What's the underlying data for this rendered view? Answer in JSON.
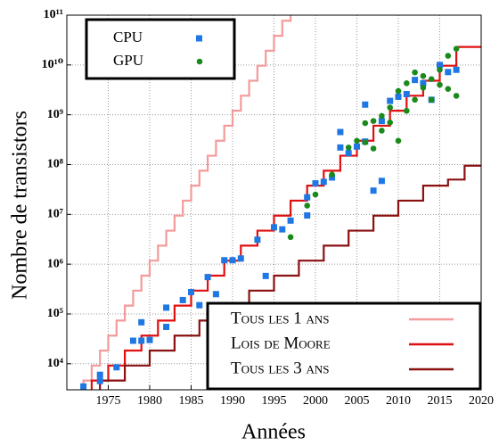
{
  "chart_data": {
    "type": "scatter",
    "xlabel": "Années",
    "ylabel": "Nombre de transistors",
    "xlim": [
      1970,
      2020
    ],
    "ylim": [
      3000,
      100000000000
    ],
    "log_y": true,
    "grid": true,
    "xticks": [
      1975,
      1980,
      1985,
      1990,
      1995,
      2000,
      2005,
      2010,
      2015,
      2020
    ],
    "yticks": [
      {
        "value": 10000,
        "label": "10⁴"
      },
      {
        "value": 100000,
        "label": "10⁵"
      },
      {
        "value": 1000000,
        "label": "10⁶"
      },
      {
        "value": 10000000,
        "label": "10⁷"
      },
      {
        "value": 100000000,
        "label": "10⁸"
      },
      {
        "value": 1000000000,
        "label": "10⁹"
      },
      {
        "value": 10000000000,
        "label": "10¹⁰"
      },
      {
        "value": 100000000000,
        "label": "10¹¹"
      }
    ],
    "series": [
      {
        "name": "CPU",
        "type": "scatter",
        "marker": "square",
        "color": "#1f77e4",
        "legend": "top-left",
        "x": [
          1971,
          1972,
          1974,
          1974,
          1976,
          1978,
          1979,
          1979,
          1980,
          1982,
          1982,
          1984,
          1985,
          1986,
          1987,
          1988,
          1989,
          1990,
          1991,
          1993,
          1994,
          1995,
          1996,
          1997,
          1999,
          1999,
          1999,
          2000,
          2001,
          2002,
          2003,
          2003,
          2004,
          2005,
          2006,
          2006,
          2007,
          2008,
          2008,
          2009,
          2010,
          2011,
          2012,
          2013,
          2014,
          2015,
          2016,
          2017
        ],
        "values": [
          2300,
          3500,
          4500,
          6000,
          8500,
          29000,
          29000,
          68000,
          30000,
          55000,
          134000,
          190000,
          275000,
          150000,
          550000,
          250000,
          1200000,
          1200000,
          1300000,
          3100000,
          580000,
          5500000,
          5000000,
          7500000,
          9500000,
          22000000,
          110000,
          42000000,
          45000000,
          55000000,
          220000000,
          450000000,
          170000000,
          230000000,
          290000000,
          1600000000,
          30000000,
          47000000,
          750000000,
          1900000000,
          2300000000,
          2600000000,
          5000000000,
          4300000000,
          2000000000,
          10000000000,
          7200000000,
          8000000000
        ]
      },
      {
        "name": "GPU",
        "type": "scatter",
        "marker": "circle",
        "color": "#1a8a1a",
        "legend": "top-left",
        "x": [
          1997,
          1999,
          2000,
          2002,
          2004,
          2005,
          2006,
          2006,
          2007,
          2007,
          2008,
          2008,
          2009,
          2009,
          2010,
          2010,
          2011,
          2011,
          2012,
          2012,
          2013,
          2013,
          2014,
          2014,
          2015,
          2015,
          2016,
          2016,
          2017,
          2017
        ],
        "values": [
          3500000,
          15000000,
          25000000,
          63000000,
          220000000,
          300000000,
          280000000,
          680000000,
          210000000,
          750000000,
          950000000,
          480000000,
          700000000,
          1400000000,
          300000000,
          3000000000,
          1200000000,
          4300000000,
          7100000000,
          2000000000,
          3500000000,
          6000000000,
          5200000000,
          2000000000,
          8000000000,
          4000000000,
          15300000000,
          3300000000,
          21100000000,
          2400000000
        ]
      },
      {
        "name": "Tous les 1 ans",
        "type": "line",
        "step": true,
        "color": "#f49a9a",
        "legend": "bottom-right",
        "x": [
          1971,
          1972,
          1973,
          1974,
          1975,
          1976,
          1977,
          1978,
          1979,
          1980,
          1981,
          1982,
          1983,
          1984,
          1985,
          1986,
          1987,
          1988,
          1989,
          1990,
          1991,
          1992,
          1993,
          1994,
          1995,
          1996,
          1997
        ],
        "values": [
          2300,
          4600,
          9200,
          18400,
          36800,
          73600,
          147200,
          294400,
          588800,
          1177600,
          2355200,
          4710400,
          9420800,
          18841600,
          37683200,
          75366400,
          150732800,
          301465600,
          602931200,
          1205862400,
          2411724800,
          4823449600,
          9646899200,
          19293798400,
          38587596800,
          77175193600,
          154350387200
        ]
      },
      {
        "name": "Lois de Moore",
        "type": "line",
        "step": true,
        "color": "#e01010",
        "legend": "bottom-right",
        "x": [
          1971,
          1973,
          1975,
          1977,
          1979,
          1981,
          1983,
          1985,
          1987,
          1989,
          1991,
          1993,
          1995,
          1997,
          1999,
          2001,
          2003,
          2005,
          2007,
          2009,
          2011,
          2013,
          2015,
          2017,
          2020
        ],
        "values": [
          2300,
          4600,
          9200,
          18400,
          36800,
          73600,
          147200,
          294400,
          588800,
          1177600,
          2355200,
          4710400,
          9420800,
          18841600,
          37683200,
          75366400,
          150732800,
          301465600,
          602931200,
          1205862400,
          2411724800,
          4823449600,
          9646899200,
          23000000000,
          23000000000
        ]
      },
      {
        "name": "Tous les 3 ans",
        "type": "line",
        "step": true,
        "color": "#8b1010",
        "legend": "bottom-right",
        "x": [
          1971,
          1974,
          1977,
          1980,
          1983,
          1986,
          1989,
          1992,
          1995,
          1998,
          2001,
          2004,
          2007,
          2010,
          2013,
          2016,
          2018,
          2020
        ],
        "values": [
          2300,
          4600,
          9200,
          18400,
          36800,
          73600,
          147200,
          294400,
          588800,
          1177600,
          2355200,
          4710400,
          9420800,
          18841600,
          37683200,
          50000000,
          95000000,
          95000000
        ]
      }
    ]
  }
}
